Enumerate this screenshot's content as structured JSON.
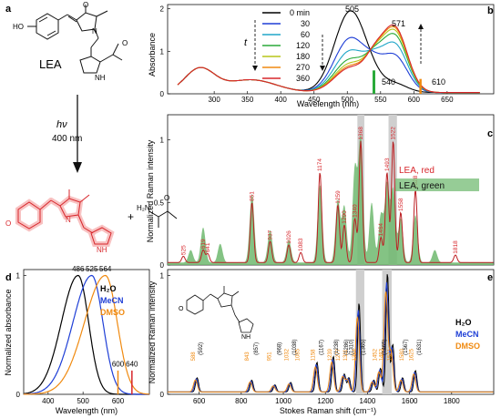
{
  "panels": {
    "a": {
      "label": "a",
      "molecule_name": "LEA",
      "hv_symbol": "hν",
      "wavelength_label": "400 nm",
      "atom_labels": {
        "HO": "HO",
        "N": "N",
        "O": "O",
        "N_minus": "N",
        "NH": "NH",
        "H2N": "H₂N",
        "O_anion": "O",
        "plus": "+"
      }
    },
    "b": {
      "label": "b",
      "time_arrow_label": "t",
      "peak_labels": [
        "505",
        "571",
        "540",
        "610"
      ],
      "legend_title": "0 min",
      "chart_data": {
        "type": "line",
        "xlabel": "Wavelength (nm)",
        "ylabel": "Absorbance",
        "xlim": [
          230,
          720
        ],
        "ylim": [
          0,
          2.1
        ],
        "xticks": [
          300,
          350,
          400,
          450,
          500,
          550,
          600,
          650
        ],
        "yticks": [
          0,
          1,
          2
        ],
        "series": [
          {
            "name": "0 min",
            "color": "#000000",
            "peak505": 1.92,
            "peak571": 0.2
          },
          {
            "name": "30",
            "color": "#1f3fd6",
            "peak505": 1.28,
            "peak571": 0.85
          },
          {
            "name": "60",
            "color": "#20a6c8",
            "peak505": 0.98,
            "peak571": 1.12
          },
          {
            "name": "120",
            "color": "#2aaa3a",
            "peak505": 0.78,
            "peak571": 1.32
          },
          {
            "name": "180",
            "color": "#b7c51a",
            "peak505": 0.68,
            "peak571": 1.42
          },
          {
            "name": "270",
            "color": "#f08a10",
            "peak505": 0.62,
            "peak571": 1.48
          },
          {
            "name": "360",
            "color": "#d7262b",
            "peak505": 0.58,
            "peak571": 1.52
          }
        ]
      }
    },
    "c": {
      "label": "c",
      "legend": [
        "LEA, red",
        "LEA, green"
      ],
      "chart_data": {
        "type": "line",
        "xlabel": "",
        "ylabel": "Normalized Raman intensity",
        "xlim": [
          450,
          2000
        ],
        "ylim": [
          0,
          1.2
        ],
        "yticks": [
          0,
          0.5,
          1
        ],
        "series": [
          {
            "name": "LEA, red",
            "color": "#d7262b"
          },
          {
            "name": "LEA, green",
            "color": "#4aa24a"
          }
        ],
        "peak_labels": [
          "525",
          "619",
          "641",
          "851",
          "937",
          "1026",
          "1083",
          "1174",
          "1259",
          "1290",
          "1340",
          "1368",
          "1464",
          "1493",
          "1522",
          "1558",
          "1628",
          "1818"
        ]
      }
    },
    "d": {
      "label": "d",
      "legend": [
        "H₂O",
        "MeCN",
        "DMSO"
      ],
      "peak_labels": [
        "486",
        "525",
        "564",
        "600",
        "640"
      ],
      "chart_data": {
        "type": "line",
        "xlabel": "Wavelength (nm)",
        "ylabel": "Normalized absorbance",
        "xlim": [
          330,
          690
        ],
        "ylim": [
          0,
          1.05
        ],
        "xticks": [
          400,
          500,
          600
        ],
        "yticks": [
          0,
          1
        ],
        "series": [
          {
            "name": "H₂O",
            "color": "#000000",
            "peak_nm": 486
          },
          {
            "name": "MeCN",
            "color": "#1f3fd6",
            "peak_nm": 525
          },
          {
            "name": "DMSO",
            "color": "#f08a10",
            "peak_nm": 564
          }
        ]
      }
    },
    "e": {
      "label": "e",
      "legend": [
        "H₂O",
        "MeCN",
        "DMSO"
      ],
      "chart_data": {
        "type": "line",
        "xlabel": "Stokes Raman shift (cm⁻¹)",
        "ylabel": "Normalized Raman intensity",
        "xlim": [
          450,
          2000
        ],
        "ylim": [
          0,
          1.05
        ],
        "xticks": [
          600,
          800,
          1000,
          1200,
          1400,
          1600,
          1800
        ],
        "yticks": [
          0,
          1
        ],
        "series": [
          {
            "name": "H₂O",
            "color": "#000000"
          },
          {
            "name": "MeCN",
            "color": "#1f3fd6"
          },
          {
            "name": "DMSO",
            "color": "#f08a10"
          }
        ],
        "peak_labels_orange": [
          "588",
          "843",
          "951",
          "1032",
          "1085",
          "1158",
          "1239",
          "1277",
          "1311",
          "1354",
          "1452",
          "1483",
          "1521",
          "1580",
          "1625"
        ],
        "peak_labels_black": [
          "(592)",
          "(857)",
          "(968)",
          "(1038)",
          "(1167)",
          "(1238)",
          "(1286)",
          "(1310)",
          "(1365)",
          "(1465)",
          "(1567)",
          "(1631)"
        ]
      }
    }
  }
}
